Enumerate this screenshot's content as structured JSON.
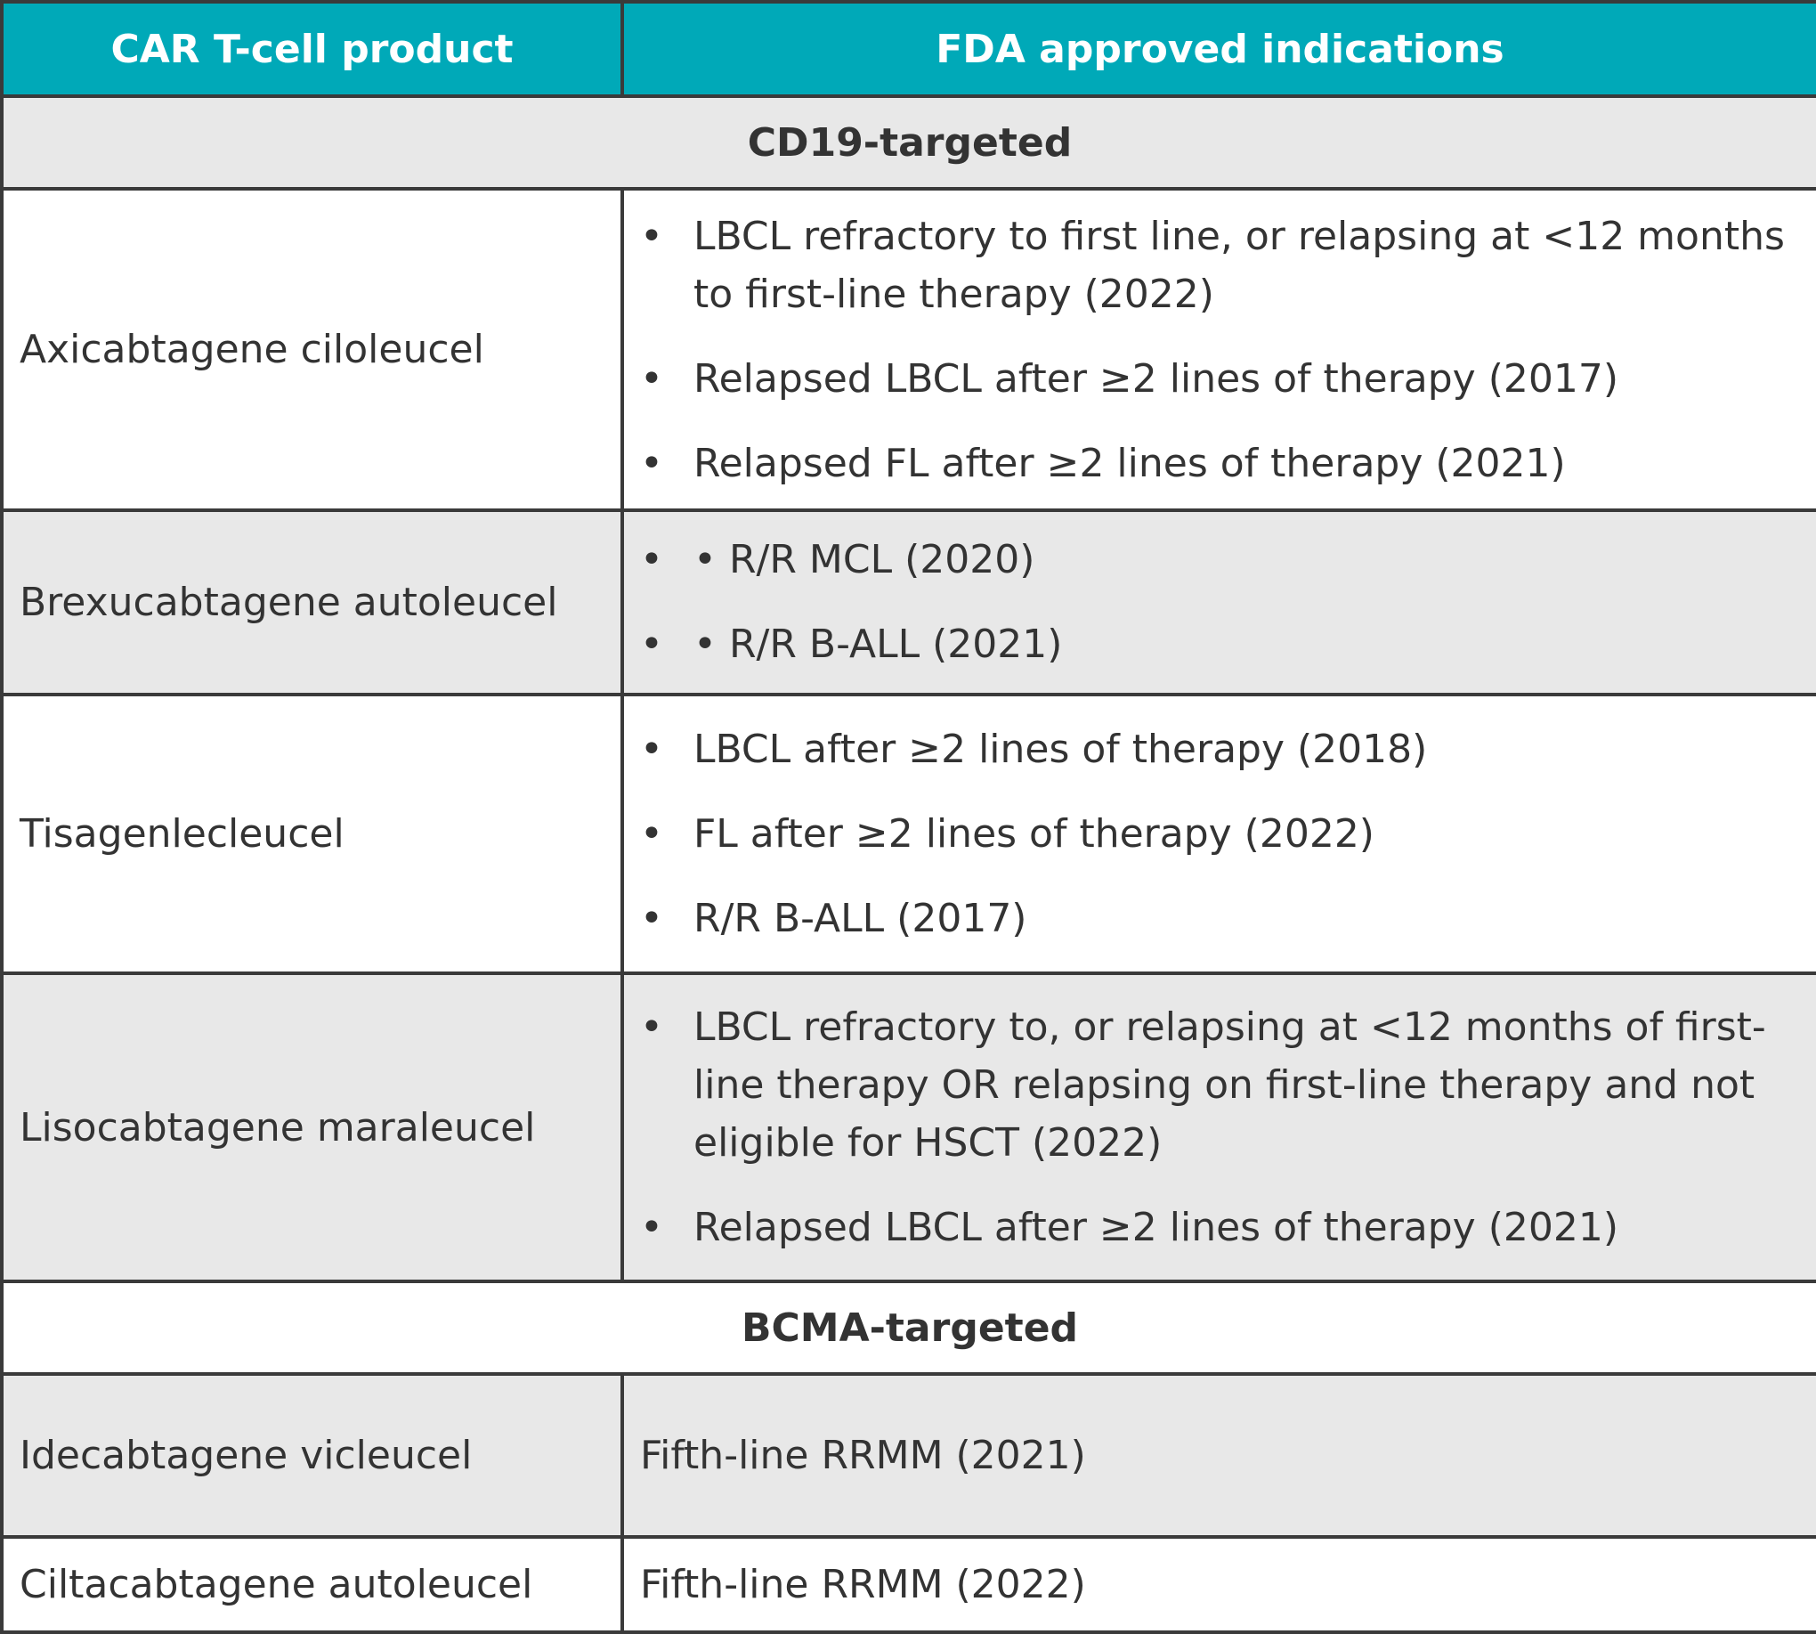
{
  "header": {
    "col1": "CAR T-cell product",
    "col2": "FDA approved indications"
  },
  "sections": [
    {
      "title": "CD19-targeted",
      "rows": [
        {
          "product": "Axicabtagene ciloleucel",
          "indications": [
            "LBCL refractory to first line, or relapsing at <12 months to first-line therapy (2022)",
            "Relapsed LBCL after ≥2 lines of therapy (2017)",
            "Relapsed FL after ≥2 lines of therapy (2021)"
          ]
        },
        {
          "product": "Brexucabtagene autoleucel",
          "indications": [
            "• R/R MCL (2020)",
            "• R/R B-ALL (2021)"
          ]
        },
        {
          "product": "Tisagenlecleucel",
          "indications": [
            "LBCL after ≥2 lines of therapy (2018)",
            "FL after ≥2 lines of therapy (2022)",
            "R/R B-ALL (2017)"
          ]
        },
        {
          "product": "Lisocabtagene maraleucel",
          "indications": [
            "LBCL refractory to, or relapsing at <12 months of first-line therapy OR relapsing on first-line therapy and not eligible for HSCT (2022)",
            "Relapsed LBCL after ≥2 lines of therapy (2021)"
          ]
        }
      ]
    },
    {
      "title": "BCMA-targeted",
      "rows": [
        {
          "product": "Idecabtagene vicleucel",
          "indication": "Fifth-line RRMM (2021)"
        },
        {
          "product": "Ciltacabtagene autoleucel",
          "indication": "Fifth-line RRMM (2022)"
        }
      ]
    }
  ],
  "colors": {
    "header_bg": "#00a9b8",
    "shade_bg": "#e8e8e8",
    "border": "#3a3a3a",
    "text": "#333333"
  }
}
